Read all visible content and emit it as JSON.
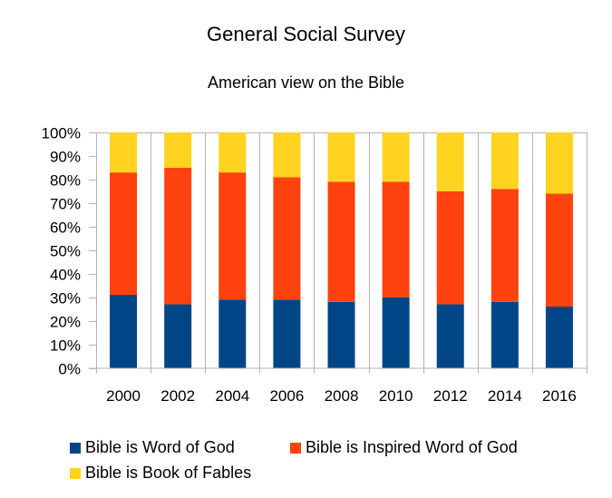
{
  "chart_data": {
    "type": "bar",
    "stacked": true,
    "percent": true,
    "title": "General Social Survey",
    "subtitle": "American view on the Bible",
    "xlabel": "",
    "ylabel": "",
    "ylim": [
      0,
      100
    ],
    "yticks": [
      "0%",
      "10%",
      "20%",
      "30%",
      "40%",
      "50%",
      "60%",
      "70%",
      "80%",
      "90%",
      "100%"
    ],
    "categories": [
      "2000",
      "2002",
      "2004",
      "2006",
      "2008",
      "2010",
      "2012",
      "2014",
      "2016"
    ],
    "series": [
      {
        "name": "Bible is Word of God",
        "color": "#004586",
        "values": [
          31,
          27,
          29,
          29,
          28,
          30,
          27,
          28,
          26
        ]
      },
      {
        "name": "Bible is Inspired Word of God",
        "color": "#ff420e",
        "values": [
          52,
          58,
          54,
          52,
          51,
          49,
          48,
          48,
          48
        ]
      },
      {
        "name": "Bible is Book of Fables",
        "color": "#ffd320",
        "values": [
          17,
          15,
          17,
          19,
          21,
          21,
          25,
          24,
          26
        ]
      }
    ],
    "grid": "vertical",
    "legend": "bottom"
  }
}
